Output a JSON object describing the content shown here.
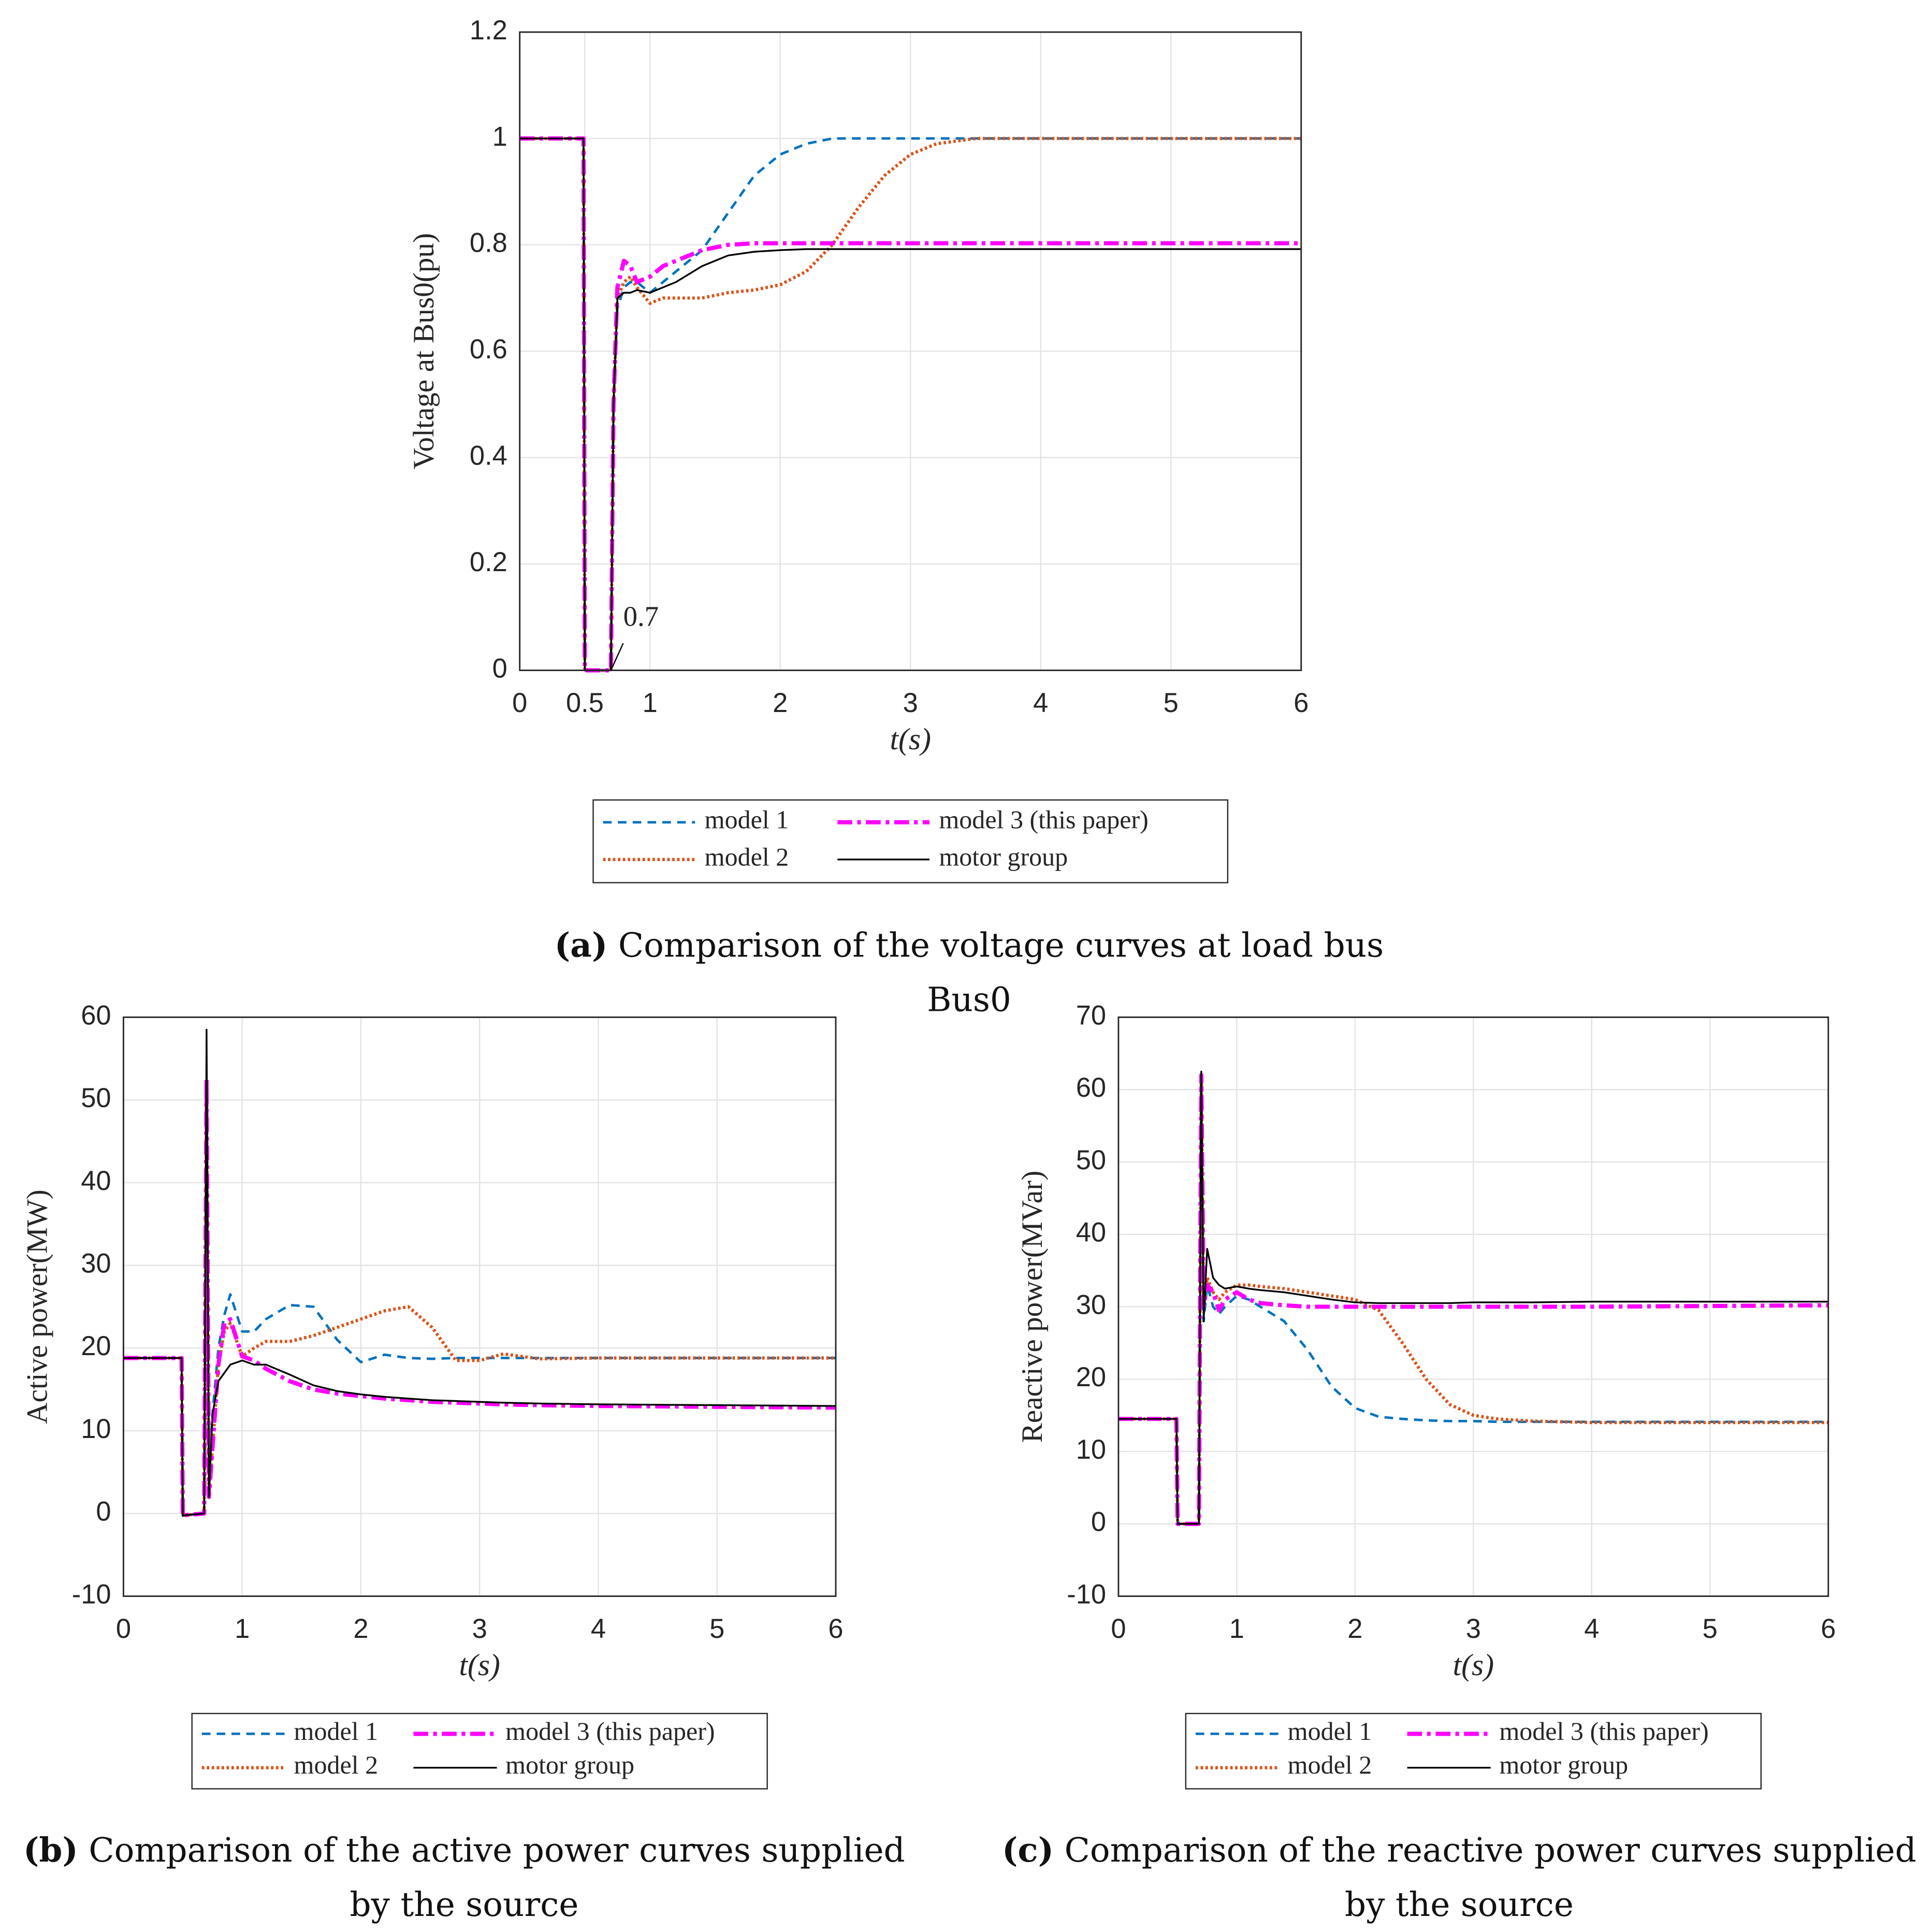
{
  "chart_data": [
    {
      "type": "line",
      "caption_label": "(a)",
      "caption": "Comparison of the voltage curves at load bus Bus0",
      "x_label": "t(s)",
      "y_label": "Voltage at Bus0(pu)",
      "x": [
        0,
        0.49,
        0.5,
        0.52,
        0.68,
        0.7,
        0.72,
        0.75,
        0.8,
        0.85,
        0.9,
        1.0,
        1.1,
        1.2,
        1.4,
        1.6,
        1.8,
        2.0,
        2.2,
        2.4,
        2.6,
        2.8,
        3.0,
        3.2,
        3.5,
        4,
        5,
        6
      ],
      "series": [
        {
          "name": "model 1",
          "color": "#0072bd",
          "style": "dashed",
          "values": [
            1,
            1,
            0,
            0,
            0,
            0,
            0.5,
            0.68,
            0.72,
            0.73,
            0.73,
            0.71,
            0.73,
            0.75,
            0.79,
            0.86,
            0.93,
            0.97,
            0.99,
            1.0,
            1.0,
            1.0,
            1.0,
            1.0,
            1.0,
            1,
            1,
            1
          ]
        },
        {
          "name": "model 2",
          "color": "#d95319",
          "style": "dotted",
          "values": [
            1,
            1,
            0,
            0,
            0,
            0,
            0.5,
            0.7,
            0.73,
            0.74,
            0.72,
            0.69,
            0.7,
            0.7,
            0.7,
            0.71,
            0.715,
            0.725,
            0.75,
            0.8,
            0.87,
            0.93,
            0.97,
            0.99,
            1.0,
            1,
            1,
            1
          ]
        },
        {
          "name": "model 3 (this paper)",
          "color": "#ff00ff",
          "style": "dashdot",
          "values": [
            1,
            1,
            0,
            0,
            0,
            0,
            0.5,
            0.72,
            0.77,
            0.76,
            0.73,
            0.74,
            0.76,
            0.77,
            0.79,
            0.8,
            0.803,
            0.803,
            0.803,
            0.803,
            0.803,
            0.803,
            0.803,
            0.803,
            0.803,
            0.803,
            0.803,
            0.803
          ]
        },
        {
          "name": "motor group",
          "color": "#000000",
          "style": "solid",
          "values": [
            1,
            1,
            0,
            0,
            0,
            0,
            0.5,
            0.7,
            0.71,
            0.71,
            0.715,
            0.71,
            0.72,
            0.73,
            0.76,
            0.78,
            0.787,
            0.79,
            0.792,
            0.792,
            0.792,
            0.792,
            0.792,
            0.792,
            0.792,
            0.792,
            0.792,
            0.792
          ]
        }
      ],
      "annotation": {
        "text": "0.7",
        "x": 0.7,
        "y": 0
      },
      "xlim": [
        0,
        6
      ],
      "xticks": [
        0,
        0.5,
        1,
        2,
        3,
        4,
        5,
        6
      ],
      "ylim": [
        0,
        1.2
      ],
      "yticks": [
        0,
        0.2,
        0.4,
        0.6,
        0.8,
        1,
        1.2
      ],
      "grid": true,
      "legend_position": "bottom"
    },
    {
      "type": "line",
      "caption_label": "(b)",
      "caption": "Comparison of the active power curves supplied by the source",
      "x_label": "t(s)",
      "y_label": "Active power(MW)",
      "x": [
        0,
        0.49,
        0.5,
        0.52,
        0.68,
        0.7,
        0.72,
        0.75,
        0.8,
        0.85,
        0.9,
        1.0,
        1.1,
        1.2,
        1.4,
        1.6,
        1.8,
        2.0,
        2.2,
        2.4,
        2.6,
        2.8,
        3.0,
        3.2,
        3.5,
        4,
        5,
        6
      ],
      "series": [
        {
          "name": "model 1",
          "color": "#0072bd",
          "style": "dashed",
          "values": [
            18.8,
            18.8,
            -0.3,
            -0.2,
            0,
            52,
            5,
            12,
            20,
            24,
            26.5,
            22,
            22,
            23.5,
            25.2,
            25,
            21,
            18.3,
            19.2,
            18.8,
            18.7,
            18.8,
            18.8,
            18.8,
            18.8,
            18.8,
            18.8,
            18.8
          ]
        },
        {
          "name": "model 2",
          "color": "#d95319",
          "style": "dotted",
          "values": [
            18.8,
            18.8,
            -0.3,
            -0.2,
            0,
            52,
            3,
            8,
            18,
            22,
            23,
            19,
            20,
            20.8,
            20.8,
            21.5,
            22.5,
            23.5,
            24.5,
            25,
            22.5,
            18.5,
            18.5,
            19.3,
            18.7,
            18.8,
            18.8,
            18.8
          ]
        },
        {
          "name": "model 3 (this paper)",
          "color": "#ff00ff",
          "style": "dashdot",
          "values": [
            18.8,
            18.8,
            -0.3,
            -0.2,
            0,
            52.5,
            2,
            8,
            18,
            23,
            23.5,
            19,
            18.5,
            17.5,
            16,
            15,
            14.5,
            14.2,
            13.9,
            13.7,
            13.5,
            13.4,
            13.3,
            13.2,
            13.1,
            13,
            12.9,
            12.8
          ]
        },
        {
          "name": "motor group",
          "color": "#000000",
          "style": "solid",
          "values": [
            18.8,
            18.8,
            -0.3,
            -0.2,
            0,
            58.5,
            2,
            12,
            16,
            17,
            18,
            18.5,
            18,
            18,
            16.8,
            15.5,
            14.8,
            14.4,
            14.1,
            13.9,
            13.7,
            13.6,
            13.5,
            13.4,
            13.3,
            13.2,
            13.1,
            13
          ]
        }
      ],
      "xlim": [
        0,
        6
      ],
      "xticks": [
        0,
        1,
        2,
        3,
        4,
        5,
        6
      ],
      "ylim": [
        -10,
        60
      ],
      "yticks": [
        -10,
        0,
        10,
        20,
        30,
        40,
        50,
        60
      ],
      "grid": true,
      "legend_position": "bottom"
    },
    {
      "type": "line",
      "caption_label": "(c)",
      "caption": "Comparison of the reactive power curves supplied by the source",
      "x_label": "t(s)",
      "y_label": "Reactive power(MVar)",
      "x": [
        0,
        0.49,
        0.5,
        0.52,
        0.68,
        0.7,
        0.72,
        0.75,
        0.8,
        0.85,
        0.9,
        1.0,
        1.1,
        1.2,
        1.4,
        1.6,
        1.8,
        2.0,
        2.2,
        2.4,
        2.6,
        2.8,
        3.0,
        3.2,
        3.5,
        4,
        5,
        6
      ],
      "series": [
        {
          "name": "model 1",
          "color": "#0072bd",
          "style": "dashed",
          "values": [
            14.5,
            14.5,
            0,
            0,
            0,
            62,
            28,
            33,
            30,
            29,
            30,
            31.5,
            31,
            30,
            28,
            24,
            19,
            16,
            14.8,
            14.5,
            14.3,
            14.2,
            14.2,
            14.1,
            14.1,
            14.1,
            14.1,
            14.1
          ]
        },
        {
          "name": "model 2",
          "color": "#d95319",
          "style": "dotted",
          "values": [
            14.5,
            14.5,
            0,
            0,
            0,
            62,
            30,
            34,
            32,
            31,
            32,
            33,
            33,
            32.8,
            32.5,
            32,
            31.5,
            31,
            29.5,
            25,
            20,
            16.5,
            15,
            14.5,
            14.2,
            14,
            14,
            14
          ]
        },
        {
          "name": "model 3 (this paper)",
          "color": "#ff00ff",
          "style": "dashdot",
          "values": [
            14.5,
            14.5,
            0,
            0,
            0,
            62,
            30,
            33,
            32,
            29.5,
            31,
            32,
            31,
            30.5,
            30.2,
            30,
            30,
            30,
            30,
            30,
            30,
            30,
            30,
            30,
            30,
            30,
            30.1,
            30.2
          ]
        },
        {
          "name": "motor group",
          "color": "#000000",
          "style": "solid",
          "values": [
            14.5,
            14.5,
            0,
            0,
            0,
            62.5,
            28,
            38,
            34,
            33,
            32.5,
            32.8,
            32.5,
            32.3,
            32,
            31.5,
            31,
            30.6,
            30.5,
            30.5,
            30.5,
            30.5,
            30.6,
            30.6,
            30.6,
            30.7,
            30.7,
            30.7
          ]
        }
      ],
      "xlim": [
        0,
        6
      ],
      "xticks": [
        0,
        1,
        2,
        3,
        4,
        5,
        6
      ],
      "ylim": [
        -10,
        70
      ],
      "yticks": [
        -10,
        0,
        10,
        20,
        30,
        40,
        50,
        60,
        70
      ],
      "grid": true,
      "legend_position": "bottom"
    }
  ]
}
